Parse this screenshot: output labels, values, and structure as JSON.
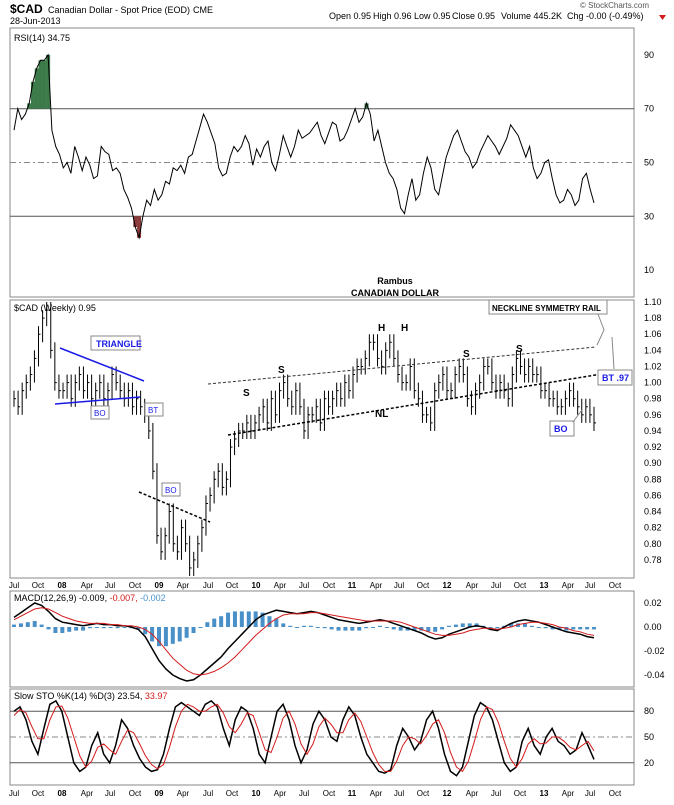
{
  "header": {
    "symbol": "$CAD",
    "name": "Canadian Dollar - Spot Price (EOD)",
    "exchange": "CME",
    "date": "28-Jun-2013",
    "open": "Open 0.95",
    "high": "High 0.96",
    "low": "Low 0.95",
    "close": "Close 0.95",
    "volume": "Volume 445.2K",
    "chg": "Chg -0.00 (-0.49%)",
    "watermark": "© StockCharts.com"
  },
  "colors": {
    "rsi_green": "#3d7a4a",
    "rsi_red": "#8b3a3a",
    "blue_lines": "#1a1ae6",
    "macd_hist": "#4a90c8",
    "signal_red": "#d41a1a",
    "grid": "#c0c0c0"
  },
  "chart_data": [
    {
      "type": "line",
      "title": "RSI(14) 34.75",
      "legend_label": "RSI(14)",
      "last_value": "34.75",
      "ylim": [
        0,
        100
      ],
      "ticks": [
        "90",
        "70",
        "50",
        "30",
        "10"
      ],
      "reference_lines": [
        70,
        50,
        30
      ],
      "y": [
        62,
        70,
        66,
        68,
        72,
        80,
        85,
        88,
        88,
        90,
        62,
        56,
        53,
        48,
        50,
        46,
        56,
        52,
        47,
        52,
        49,
        44,
        45,
        56,
        54,
        53,
        47,
        48,
        46,
        40,
        37,
        33,
        26,
        22,
        30,
        36,
        34,
        40,
        36,
        38,
        43,
        42,
        48,
        47,
        49,
        46,
        52,
        53,
        58,
        63,
        68,
        65,
        61,
        57,
        48,
        45,
        46,
        52,
        56,
        54,
        56,
        60,
        57,
        49,
        55,
        52,
        56,
        58,
        50,
        47,
        53,
        60,
        56,
        52,
        56,
        62,
        59,
        60,
        61,
        63,
        65,
        60,
        57,
        61,
        65,
        64,
        58,
        59,
        62,
        66,
        70,
        65,
        67,
        72,
        68,
        58,
        62,
        56,
        50,
        46,
        44,
        40,
        33,
        31,
        38,
        44,
        36,
        38,
        46,
        52,
        48,
        40,
        38,
        45,
        52,
        56,
        60,
        62,
        58,
        54,
        52,
        48,
        50,
        54,
        57,
        60,
        58,
        56,
        53,
        56,
        59,
        64,
        62,
        60,
        56,
        52,
        56,
        48,
        44,
        46,
        50,
        51,
        44,
        38,
        35,
        36,
        40,
        38,
        34,
        36,
        44,
        46,
        40,
        35
      ]
    },
    {
      "type": "line",
      "title": "$CAD (Weekly) 0.95",
      "legend_label": "$CAD (Weekly)",
      "last_value": "0.95",
      "annotations_title": [
        "Rambus",
        "CANADIAN DOLLAR"
      ],
      "ylim": [
        0.76,
        1.1
      ],
      "ticks": [
        "1.10",
        "1.08",
        "1.06",
        "1.04",
        "1.02",
        "1.00",
        "0.98",
        "0.96",
        "0.94",
        "0.92",
        "0.90",
        "0.88",
        "0.86",
        "0.84",
        "0.82",
        "0.80",
        "0.78"
      ],
      "x_ticks": [
        "Jul",
        "Oct",
        "08",
        "Apr",
        "Jul",
        "Oct",
        "09",
        "Apr",
        "Jul",
        "Oct",
        "10",
        "Apr",
        "Jul",
        "Oct",
        "11",
        "Apr",
        "Jul",
        "Oct",
        "12",
        "Apr",
        "Jul",
        "Oct",
        "13",
        "Apr",
        "Jul",
        "Oct"
      ],
      "y": [
        0.98,
        0.97,
        0.99,
        1.0,
        1.01,
        1.03,
        1.06,
        1.08,
        1.09,
        1.04,
        1.0,
        0.99,
        0.99,
        1.0,
        0.98,
        1.0,
        1.01,
        0.99,
        1.0,
        0.98,
        0.99,
        1.0,
        0.98,
        0.99,
        1.01,
        1.0,
        0.99,
        0.98,
        0.99,
        0.97,
        0.98,
        0.97,
        0.96,
        0.94,
        0.89,
        0.81,
        0.79,
        0.81,
        0.84,
        0.8,
        0.79,
        0.82,
        0.8,
        0.77,
        0.78,
        0.8,
        0.82,
        0.85,
        0.86,
        0.88,
        0.89,
        0.87,
        0.88,
        0.92,
        0.93,
        0.94,
        0.94,
        0.95,
        0.94,
        0.95,
        0.96,
        0.97,
        0.95,
        0.98,
        0.96,
        0.99,
        1.0,
        0.98,
        0.97,
        0.99,
        0.97,
        0.94,
        0.96,
        0.96,
        0.97,
        0.95,
        0.98,
        0.97,
        0.98,
        0.99,
        0.98,
        1.0,
        0.99,
        1.01,
        1.02,
        1.02,
        1.03,
        1.05,
        1.05,
        1.03,
        1.02,
        1.04,
        1.05,
        1.03,
        1.01,
        1.0,
        1.0,
        1.02,
        0.99,
        0.98,
        0.96,
        0.96,
        0.95,
        0.99,
        1.0,
        1.01,
        0.99,
        0.99,
        1.01,
        1.02,
        1.01,
        0.98,
        0.97,
        0.99,
        1.0,
        1.02,
        1.02,
        1.0,
        0.99,
        1.0,
        0.99,
        0.98,
        1.01,
        1.03,
        1.02,
        1.01,
        1.02,
        1.01,
        1.01,
        0.99,
        0.99,
        0.98,
        0.98,
        0.97,
        0.97,
        0.98,
        0.99,
        0.98,
        0.97,
        0.96,
        0.97,
        0.96,
        0.95
      ],
      "annotations": [
        "TRIANGLE",
        "BO",
        "BT",
        "BO",
        "S",
        "S",
        "H",
        "H",
        "S",
        "S",
        "NL",
        "NECKLINE SYMMETRY RAIL",
        "BT .97",
        "BO"
      ]
    },
    {
      "type": "line",
      "title": "MACD(12,26,9) -0.009, -0.007, -0.002",
      "legend_label": "MACD(12,26,9)",
      "values_text": [
        "-0.009,",
        "-0.007,",
        "-0.002"
      ],
      "ylim": [
        -0.05,
        0.03
      ],
      "ticks": [
        "0.02",
        "0.00",
        "-0.02",
        "-0.04"
      ],
      "series": [
        {
          "name": "MACD",
          "values": [
            0.008,
            0.012,
            0.016,
            0.02,
            0.018,
            0.013,
            0.007,
            0.004,
            0.003,
            0.002,
            0.001,
            0.002,
            0.003,
            0.002,
            0.002,
            0.001,
            0.001,
            0.0,
            -0.002,
            -0.008,
            -0.018,
            -0.028,
            -0.035,
            -0.04,
            -0.043,
            -0.045,
            -0.044,
            -0.04,
            -0.035,
            -0.03,
            -0.025,
            -0.018,
            -0.012,
            -0.006,
            0.0,
            0.006,
            0.01,
            0.012,
            0.014,
            0.013,
            0.012,
            0.011,
            0.012,
            0.013,
            0.012,
            0.01,
            0.008,
            0.006,
            0.005,
            0.004,
            0.003,
            0.004,
            0.005,
            0.006,
            0.005,
            0.003,
            0.001,
            -0.001,
            -0.003,
            -0.005,
            -0.008,
            -0.01,
            -0.009,
            -0.006,
            -0.004,
            -0.002,
            0.0,
            0.001,
            0.0,
            -0.002,
            -0.003,
            0.0,
            0.003,
            0.005,
            0.006,
            0.005,
            0.004,
            0.002,
            0.0,
            -0.002,
            -0.004,
            -0.005,
            -0.006,
            -0.008,
            -0.009
          ]
        },
        {
          "name": "Signal",
          "values": [
            0.006,
            0.009,
            0.012,
            0.015,
            0.016,
            0.015,
            0.012,
            0.009,
            0.007,
            0.005,
            0.004,
            0.003,
            0.003,
            0.003,
            0.002,
            0.002,
            0.001,
            0.001,
            0.0,
            -0.002,
            -0.006,
            -0.012,
            -0.019,
            -0.026,
            -0.031,
            -0.036,
            -0.039,
            -0.04,
            -0.039,
            -0.037,
            -0.034,
            -0.03,
            -0.025,
            -0.019,
            -0.013,
            -0.007,
            -0.002,
            0.003,
            0.007,
            0.01,
            0.011,
            0.011,
            0.011,
            0.012,
            0.012,
            0.011,
            0.01,
            0.009,
            0.008,
            0.007,
            0.006,
            0.005,
            0.005,
            0.005,
            0.005,
            0.005,
            0.004,
            0.002,
            0.0,
            -0.002,
            -0.004,
            -0.006,
            -0.007,
            -0.007,
            -0.006,
            -0.005,
            -0.003,
            -0.002,
            -0.001,
            -0.001,
            -0.002,
            -0.001,
            0.0,
            0.002,
            0.003,
            0.004,
            0.004,
            0.003,
            0.002,
            0.0,
            -0.001,
            -0.003,
            -0.004,
            -0.006,
            -0.007
          ]
        }
      ]
    },
    {
      "type": "line",
      "title": "Slow STO %K(14) %D(3) 23.54, 33.97",
      "legend_label": "Slow STO %K(14) %D(3)",
      "values_text": [
        "23.54,",
        "33.97"
      ],
      "ylim": [
        0,
        100
      ],
      "ticks": [
        "80",
        "50",
        "20"
      ],
      "reference_lines": [
        80,
        50,
        20
      ],
      "series": [
        {
          "name": "%K",
          "values": [
            80,
            85,
            70,
            45,
            30,
            60,
            88,
            92,
            80,
            50,
            20,
            10,
            15,
            40,
            55,
            30,
            20,
            40,
            70,
            60,
            40,
            25,
            15,
            10,
            12,
            30,
            60,
            85,
            90,
            85,
            80,
            75,
            88,
            92,
            85,
            60,
            40,
            70,
            85,
            80,
            60,
            30,
            20,
            50,
            80,
            88,
            70,
            40,
            20,
            35,
            65,
            80,
            70,
            50,
            45,
            70,
            85,
            75,
            50,
            30,
            20,
            10,
            8,
            12,
            40,
            60,
            50,
            35,
            45,
            70,
            80,
            60,
            30,
            10,
            5,
            15,
            45,
            75,
            90,
            85,
            70,
            45,
            20,
            10,
            15,
            45,
            60,
            40,
            30,
            50,
            60,
            45,
            40,
            30,
            35,
            55,
            40,
            24
          ]
        },
        {
          "name": "%D",
          "values": [
            75,
            82,
            78,
            62,
            48,
            48,
            70,
            85,
            86,
            72,
            50,
            28,
            15,
            22,
            38,
            42,
            35,
            30,
            45,
            58,
            55,
            42,
            28,
            18,
            13,
            18,
            38,
            62,
            80,
            88,
            85,
            80,
            80,
            85,
            88,
            78,
            62,
            55,
            65,
            78,
            75,
            55,
            35,
            32,
            50,
            72,
            80,
            65,
            42,
            30,
            42,
            62,
            72,
            65,
            55,
            55,
            70,
            78,
            68,
            50,
            32,
            18,
            10,
            10,
            22,
            40,
            50,
            48,
            42,
            52,
            65,
            70,
            55,
            32,
            15,
            10,
            22,
            45,
            70,
            85,
            82,
            67,
            45,
            25,
            15,
            25,
            42,
            48,
            42,
            43,
            50,
            50,
            45,
            38,
            35,
            40,
            45,
            34
          ]
        }
      ]
    }
  ]
}
